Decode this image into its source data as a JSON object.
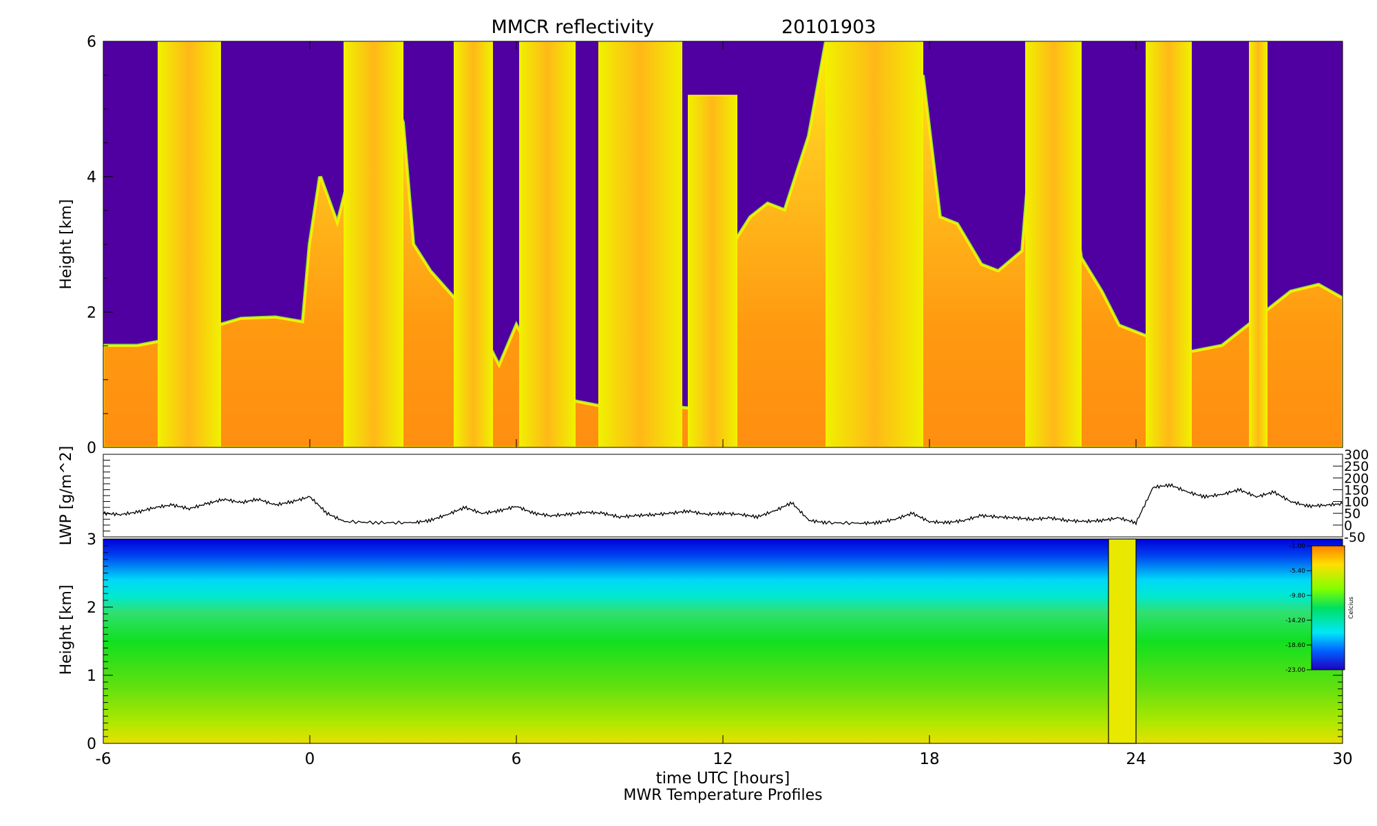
{
  "figure": {
    "title": "MMCR reflectivity",
    "date": "20101903",
    "xlabel": "time UTC [hours]",
    "footer": "MWR Temperature Profiles"
  },
  "chart_data": [
    {
      "type": "heatmap",
      "name": "reflectivity",
      "title": "MMCR reflectivity",
      "ylabel": "Height [km]",
      "xlim": [
        -6,
        30
      ],
      "ylim": [
        0,
        6
      ],
      "xticks": [
        "-6",
        "0",
        "6",
        "12",
        "18",
        "24",
        "30"
      ],
      "yticks": [
        "0",
        "2",
        "4",
        "6"
      ],
      "colors": {
        "background": "#5000a0",
        "cloud_edge": "#f5f000",
        "cloud_core": "#ff9a10",
        "edge_green": "#90e040"
      },
      "cloud_top_km": [
        [
          -6,
          1.5
        ],
        [
          -5.5,
          1.5
        ],
        [
          -5,
          1.5
        ],
        [
          -4.5,
          1.55
        ],
        [
          -4,
          1.6
        ],
        [
          -3,
          1.75
        ],
        [
          -2,
          1.9
        ],
        [
          -1,
          1.92
        ],
        [
          -0.2,
          1.85
        ],
        [
          0,
          3.0
        ],
        [
          0.3,
          4.0
        ],
        [
          0.8,
          3.3
        ],
        [
          1.2,
          4.1
        ],
        [
          1.8,
          4.6
        ],
        [
          2.2,
          5.5
        ],
        [
          2.7,
          4.8
        ],
        [
          3.0,
          3.0
        ],
        [
          3.5,
          2.6
        ],
        [
          4.2,
          2.2
        ],
        [
          5.0,
          1.7
        ],
        [
          5.5,
          1.2
        ],
        [
          6,
          1.8
        ],
        [
          6.5,
          1.3
        ],
        [
          7,
          1.0
        ],
        [
          7.5,
          0.7
        ],
        [
          8.5,
          0.6
        ],
        [
          9.5,
          0.6
        ],
        [
          10.5,
          0.6
        ],
        [
          11.5,
          0.55
        ],
        [
          12,
          0.5
        ],
        [
          12.3,
          3.0
        ],
        [
          12.8,
          3.4
        ],
        [
          13.3,
          3.6
        ],
        [
          13.8,
          3.5
        ],
        [
          14.5,
          4.6
        ],
        [
          15,
          6.0
        ],
        [
          16,
          6.0
        ],
        [
          16.5,
          5.8
        ],
        [
          17.3,
          4.8
        ],
        [
          17.8,
          5.5
        ],
        [
          18.3,
          3.4
        ],
        [
          18.8,
          3.3
        ],
        [
          19.5,
          2.7
        ],
        [
          20,
          2.6
        ],
        [
          20.7,
          2.9
        ],
        [
          21.2,
          6.0
        ],
        [
          21.8,
          4.8
        ],
        [
          22.4,
          2.8
        ],
        [
          23,
          2.3
        ],
        [
          23.5,
          1.8
        ],
        [
          24.5,
          1.6
        ],
        [
          25.5,
          1.4
        ],
        [
          26.5,
          1.5
        ],
        [
          27.5,
          1.9
        ],
        [
          28.5,
          2.3
        ],
        [
          29.3,
          2.4
        ],
        [
          30,
          2.2
        ]
      ],
      "cloud_columns": [
        {
          "x0": -4.4,
          "x1": -2.6,
          "top_km": 6.0
        },
        {
          "x0": 1.0,
          "x1": 2.7,
          "top_km": 6.0
        },
        {
          "x0": 4.2,
          "x1": 5.3,
          "top_km": 6.0
        },
        {
          "x0": 6.1,
          "x1": 7.7,
          "top_km": 6.0
        },
        {
          "x0": 8.4,
          "x1": 10.8,
          "top_km": 6.0
        },
        {
          "x0": 11.0,
          "x1": 12.4,
          "top_km": 5.2
        },
        {
          "x0": 15.0,
          "x1": 17.8,
          "top_km": 6.0
        },
        {
          "x0": 20.8,
          "x1": 22.4,
          "top_km": 6.0
        },
        {
          "x0": 24.3,
          "x1": 25.6,
          "top_km": 6.0
        },
        {
          "x0": 27.3,
          "x1": 27.8,
          "top_km": 6.0
        }
      ]
    },
    {
      "type": "line",
      "name": "lwp",
      "ylabel": "LWP [g/m^2]",
      "xlim": [
        -6,
        30
      ],
      "ylim": [
        -50,
        300
      ],
      "yticks": [
        "300",
        "250",
        "200",
        "150",
        "100",
        "50",
        "0",
        "-50"
      ],
      "series": [
        {
          "x": [
            -6,
            -5.5,
            -5,
            -4.5,
            -4,
            -3.5,
            -3,
            -2.5,
            -2,
            -1.5,
            -1,
            -0.5,
            0,
            0.5,
            1,
            2,
            3,
            3.5,
            4,
            4.5,
            5,
            5.5,
            6,
            6.5,
            7,
            7.5,
            8,
            8.5,
            9,
            9.5,
            10,
            10.5,
            11,
            11.5,
            12,
            12.5,
            13,
            13.5,
            14,
            14.5,
            15,
            16,
            16.5,
            17,
            17.5,
            18,
            18.5,
            19,
            19.5,
            20,
            20.5,
            21,
            21.5,
            22,
            22.5,
            23,
            23.5,
            24,
            24.5,
            25,
            25.5,
            26,
            26.5,
            27,
            27.5,
            28,
            28.5,
            29,
            29.5,
            30
          ],
          "y": [
            50,
            45,
            55,
            75,
            85,
            70,
            90,
            110,
            95,
            110,
            85,
            100,
            120,
            50,
            15,
            10,
            10,
            20,
            45,
            75,
            50,
            60,
            80,
            50,
            40,
            45,
            55,
            50,
            35,
            40,
            45,
            50,
            60,
            45,
            50,
            45,
            35,
            60,
            95,
            20,
            10,
            8,
            10,
            25,
            50,
            15,
            10,
            20,
            40,
            35,
            30,
            25,
            30,
            20,
            15,
            20,
            30,
            10,
            160,
            170,
            140,
            120,
            130,
            150,
            120,
            140,
            100,
            80,
            85,
            90
          ]
        }
      ]
    },
    {
      "type": "heatmap",
      "name": "temperature",
      "ylabel": "Height [km]",
      "xlim": [
        -6,
        30
      ],
      "ylim": [
        0,
        3
      ],
      "yticks": [
        "0",
        "1",
        "2",
        "3"
      ],
      "gap_hours": [
        23.2,
        24.0
      ],
      "colorbar": {
        "label": "Celcius",
        "ticks": [
          "-1.00",
          "-5.40",
          "-9.80",
          "-14.20",
          "-18.60",
          "-23.00"
        ]
      }
    }
  ]
}
